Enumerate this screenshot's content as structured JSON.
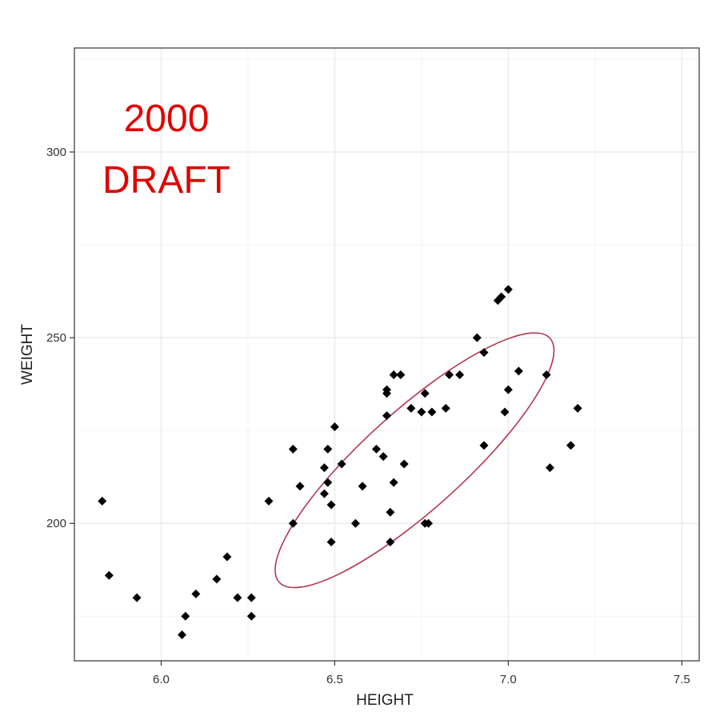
{
  "chart_data": {
    "type": "scatter",
    "xlabel": "HEIGHT",
    "ylabel": "WEIGHT",
    "xlim": [
      5.75,
      7.55
    ],
    "ylim": [
      163,
      328
    ],
    "x_ticks": [
      6.0,
      6.5,
      7.0,
      7.5
    ],
    "x_tick_labels": [
      "6.0",
      "6.5",
      "7.0",
      "7.5"
    ],
    "y_ticks": [
      200,
      250,
      300
    ],
    "y_tick_labels": [
      "200",
      "250",
      "300"
    ],
    "grid": true,
    "legend": "none",
    "annotations": [
      "2000",
      "DRAFT"
    ],
    "colors": {
      "points": "#000000",
      "ellipse": "#b5344f",
      "annotation": "#e00000",
      "grid": "#ebebeb",
      "panel_border": "#333333"
    },
    "ellipse": {
      "center": [
        6.73,
        217
      ],
      "rx_height": 0.525,
      "ry_weight": 13.3,
      "angle_degrees": -42
    },
    "points": [
      {
        "x": 5.83,
        "y": 206
      },
      {
        "x": 5.85,
        "y": 186
      },
      {
        "x": 5.93,
        "y": 180
      },
      {
        "x": 6.06,
        "y": 170
      },
      {
        "x": 6.07,
        "y": 175
      },
      {
        "x": 6.1,
        "y": 181
      },
      {
        "x": 6.16,
        "y": 185
      },
      {
        "x": 6.19,
        "y": 191
      },
      {
        "x": 6.22,
        "y": 180
      },
      {
        "x": 6.26,
        "y": 180
      },
      {
        "x": 6.26,
        "y": 175
      },
      {
        "x": 6.31,
        "y": 206
      },
      {
        "x": 6.38,
        "y": 220
      },
      {
        "x": 6.38,
        "y": 200
      },
      {
        "x": 6.4,
        "y": 210
      },
      {
        "x": 6.47,
        "y": 215
      },
      {
        "x": 6.47,
        "y": 208
      },
      {
        "x": 6.48,
        "y": 220
      },
      {
        "x": 6.48,
        "y": 211
      },
      {
        "x": 6.49,
        "y": 205
      },
      {
        "x": 6.49,
        "y": 195
      },
      {
        "x": 6.5,
        "y": 226
      },
      {
        "x": 6.52,
        "y": 216
      },
      {
        "x": 6.56,
        "y": 200
      },
      {
        "x": 6.58,
        "y": 210
      },
      {
        "x": 6.62,
        "y": 220
      },
      {
        "x": 6.64,
        "y": 218
      },
      {
        "x": 6.65,
        "y": 236
      },
      {
        "x": 6.65,
        "y": 235
      },
      {
        "x": 6.65,
        "y": 229
      },
      {
        "x": 6.66,
        "y": 203
      },
      {
        "x": 6.66,
        "y": 195
      },
      {
        "x": 6.67,
        "y": 240
      },
      {
        "x": 6.67,
        "y": 211
      },
      {
        "x": 6.69,
        "y": 240
      },
      {
        "x": 6.7,
        "y": 216
      },
      {
        "x": 6.72,
        "y": 231
      },
      {
        "x": 6.75,
        "y": 230
      },
      {
        "x": 6.76,
        "y": 235
      },
      {
        "x": 6.76,
        "y": 200
      },
      {
        "x": 6.77,
        "y": 200
      },
      {
        "x": 6.78,
        "y": 230
      },
      {
        "x": 6.82,
        "y": 231
      },
      {
        "x": 6.83,
        "y": 240
      },
      {
        "x": 6.86,
        "y": 240
      },
      {
        "x": 6.91,
        "y": 250
      },
      {
        "x": 6.93,
        "y": 246
      },
      {
        "x": 6.93,
        "y": 221
      },
      {
        "x": 6.97,
        "y": 260
      },
      {
        "x": 6.98,
        "y": 261
      },
      {
        "x": 6.99,
        "y": 230
      },
      {
        "x": 7.0,
        "y": 263
      },
      {
        "x": 7.0,
        "y": 236
      },
      {
        "x": 7.03,
        "y": 241
      },
      {
        "x": 7.11,
        "y": 240
      },
      {
        "x": 7.12,
        "y": 215
      },
      {
        "x": 7.18,
        "y": 221
      },
      {
        "x": 7.2,
        "y": 231
      }
    ]
  }
}
